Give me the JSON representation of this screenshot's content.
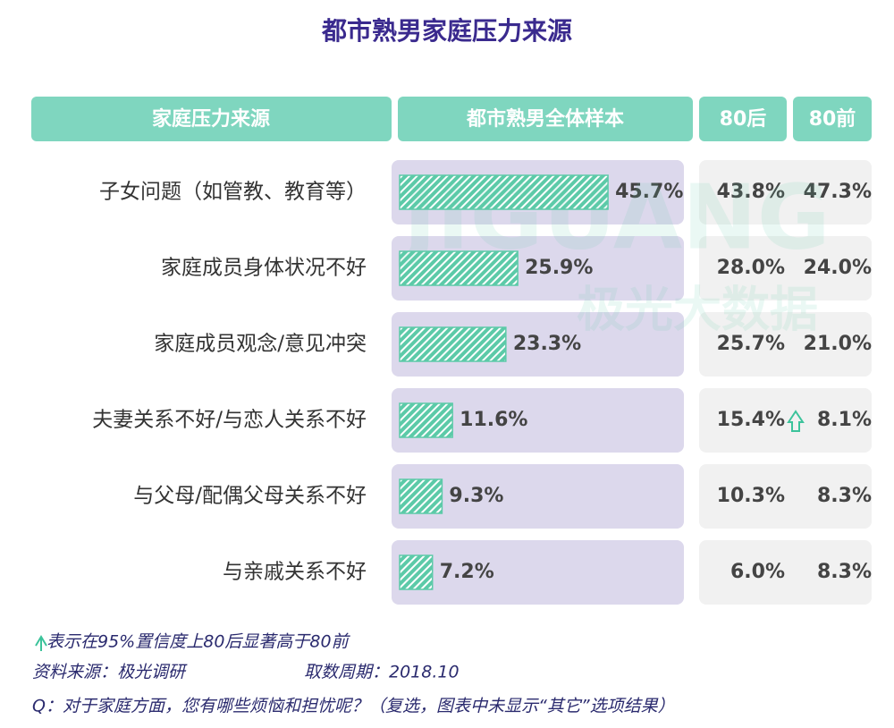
{
  "chart_data": {
    "type": "bar",
    "title": "都市熟男家庭压力来源",
    "category_header": "家庭压力来源",
    "categories": [
      "子女问题（如管教、教育等）",
      "家庭成员身体状况不好",
      "家庭成员观念/意见冲突",
      "夫妻关系不好/与恋人关系不好",
      "与父母/配偶父母关系不好",
      "与亲戚关系不好"
    ],
    "series": [
      {
        "name": "都市熟男全体样本",
        "color": "#5ccaa8",
        "values": [
          45.7,
          25.9,
          23.3,
          11.6,
          9.3,
          7.2
        ],
        "value_labels": [
          "45.7%",
          "25.9%",
          "23.3%",
          "11.6%",
          "9.3%",
          "7.2%"
        ]
      },
      {
        "name": "80后",
        "values": [
          43.8,
          28.0,
          25.7,
          15.4,
          10.3,
          6.0
        ],
        "value_labels": [
          "43.8%",
          "28.0%",
          "25.7%",
          "15.4%",
          "10.3%",
          "6.0%"
        ]
      },
      {
        "name": "80前",
        "values": [
          47.3,
          24.0,
          21.0,
          8.1,
          8.3,
          8.3
        ],
        "value_labels": [
          "47.3%",
          "24.0%",
          "21.0%",
          "8.1%",
          "8.3%",
          "8.3%"
        ]
      }
    ],
    "significant_rows": [
      3
    ],
    "xlim": [
      0,
      60
    ],
    "note": "表示在95%置信度上80后显著高于80前",
    "source": "资料来源：极光调研",
    "period": "取数周期：2018.10",
    "question": "Q：对于家庭方面，您有哪些烦恼和担忧呢？（复选，图表中未显示“其它”选项结果）",
    "watermark": [
      "JIGUANG",
      "极光大数据"
    ]
  }
}
